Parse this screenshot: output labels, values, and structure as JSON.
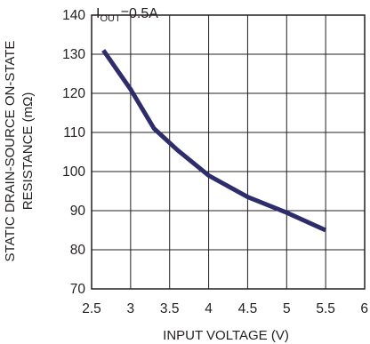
{
  "chart_data": {
    "type": "line",
    "title": "",
    "annotation": {
      "prefix": "I",
      "subscript": "OUT",
      "suffix": "=0.5A"
    },
    "xlabel": "INPUT VOLTAGE (V)",
    "ylabel_line1": "STATIC DRAIN-SOURCE ON-STATE",
    "ylabel_line2": "RESISTANCE (mΩ)",
    "xlim": [
      2.5,
      6
    ],
    "ylim": [
      70,
      140
    ],
    "xticks": [
      2.5,
      3,
      3.5,
      4,
      4.5,
      5,
      5.5,
      6
    ],
    "xtick_labels": [
      "2.5",
      "3",
      "3.5",
      "4",
      "4.5",
      "5",
      "5.5",
      "6"
    ],
    "yticks": [
      70,
      80,
      90,
      100,
      110,
      120,
      130,
      140
    ],
    "ytick_labels": [
      "70",
      "80",
      "90",
      "100",
      "110",
      "120",
      "130",
      "140"
    ],
    "grid": true,
    "line_color": "#2e2d6b",
    "series": [
      {
        "x": [
          2.65,
          3.0,
          3.3,
          3.6,
          4.0,
          4.5,
          5.0,
          5.5
        ],
        "y": [
          131,
          121,
          111,
          105.5,
          99,
          93.5,
          89.5,
          85
        ]
      }
    ]
  }
}
